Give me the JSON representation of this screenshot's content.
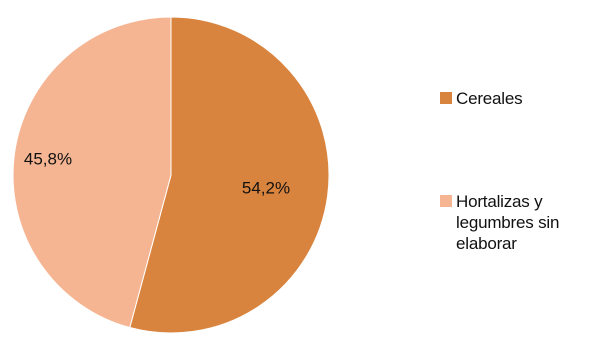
{
  "chart_data": {
    "type": "pie",
    "categories": [
      "Cereales",
      "Hortalizas y legumbres sin elaborar"
    ],
    "values": [
      54.2,
      45.8
    ],
    "labels": [
      "54,2%",
      "45,8%"
    ],
    "colors": [
      "#D9843E",
      "#F6B592"
    ],
    "legend_position": "right",
    "title": ""
  },
  "legend": {
    "items": [
      {
        "label": "Cereales",
        "color": "#D9843E"
      },
      {
        "label": "Hortalizas y legumbres sin elaborar",
        "color": "#F6B592"
      }
    ]
  }
}
